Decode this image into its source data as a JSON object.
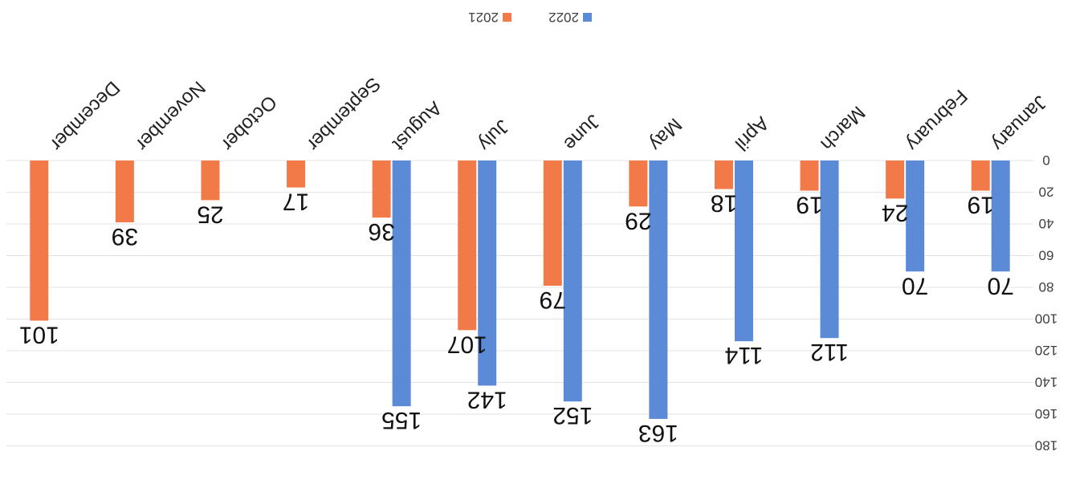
{
  "chart_data": {
    "type": "bar",
    "orientation": "rotated-180",
    "categories": [
      "January",
      "February",
      "March",
      "April",
      "May",
      "June",
      "July",
      "August",
      "September",
      "October",
      "November",
      "December"
    ],
    "series": [
      {
        "name": "2022",
        "color": "#5B8BD6",
        "values": [
          70,
          70,
          112,
          114,
          163,
          152,
          142,
          155,
          null,
          null,
          null,
          null
        ]
      },
      {
        "name": "2021",
        "color": "#F27A48",
        "values": [
          19,
          24,
          19,
          18,
          29,
          79,
          107,
          36,
          17,
          25,
          39,
          101
        ]
      }
    ],
    "title": "",
    "xlabel": "",
    "ylabel": "",
    "ylim": [
      0,
      180
    ],
    "yticks": [
      0,
      20,
      40,
      60,
      80,
      100,
      120,
      140,
      160,
      180
    ],
    "grid": true,
    "legend": {
      "position": "top-center"
    },
    "data_labels": true
  }
}
